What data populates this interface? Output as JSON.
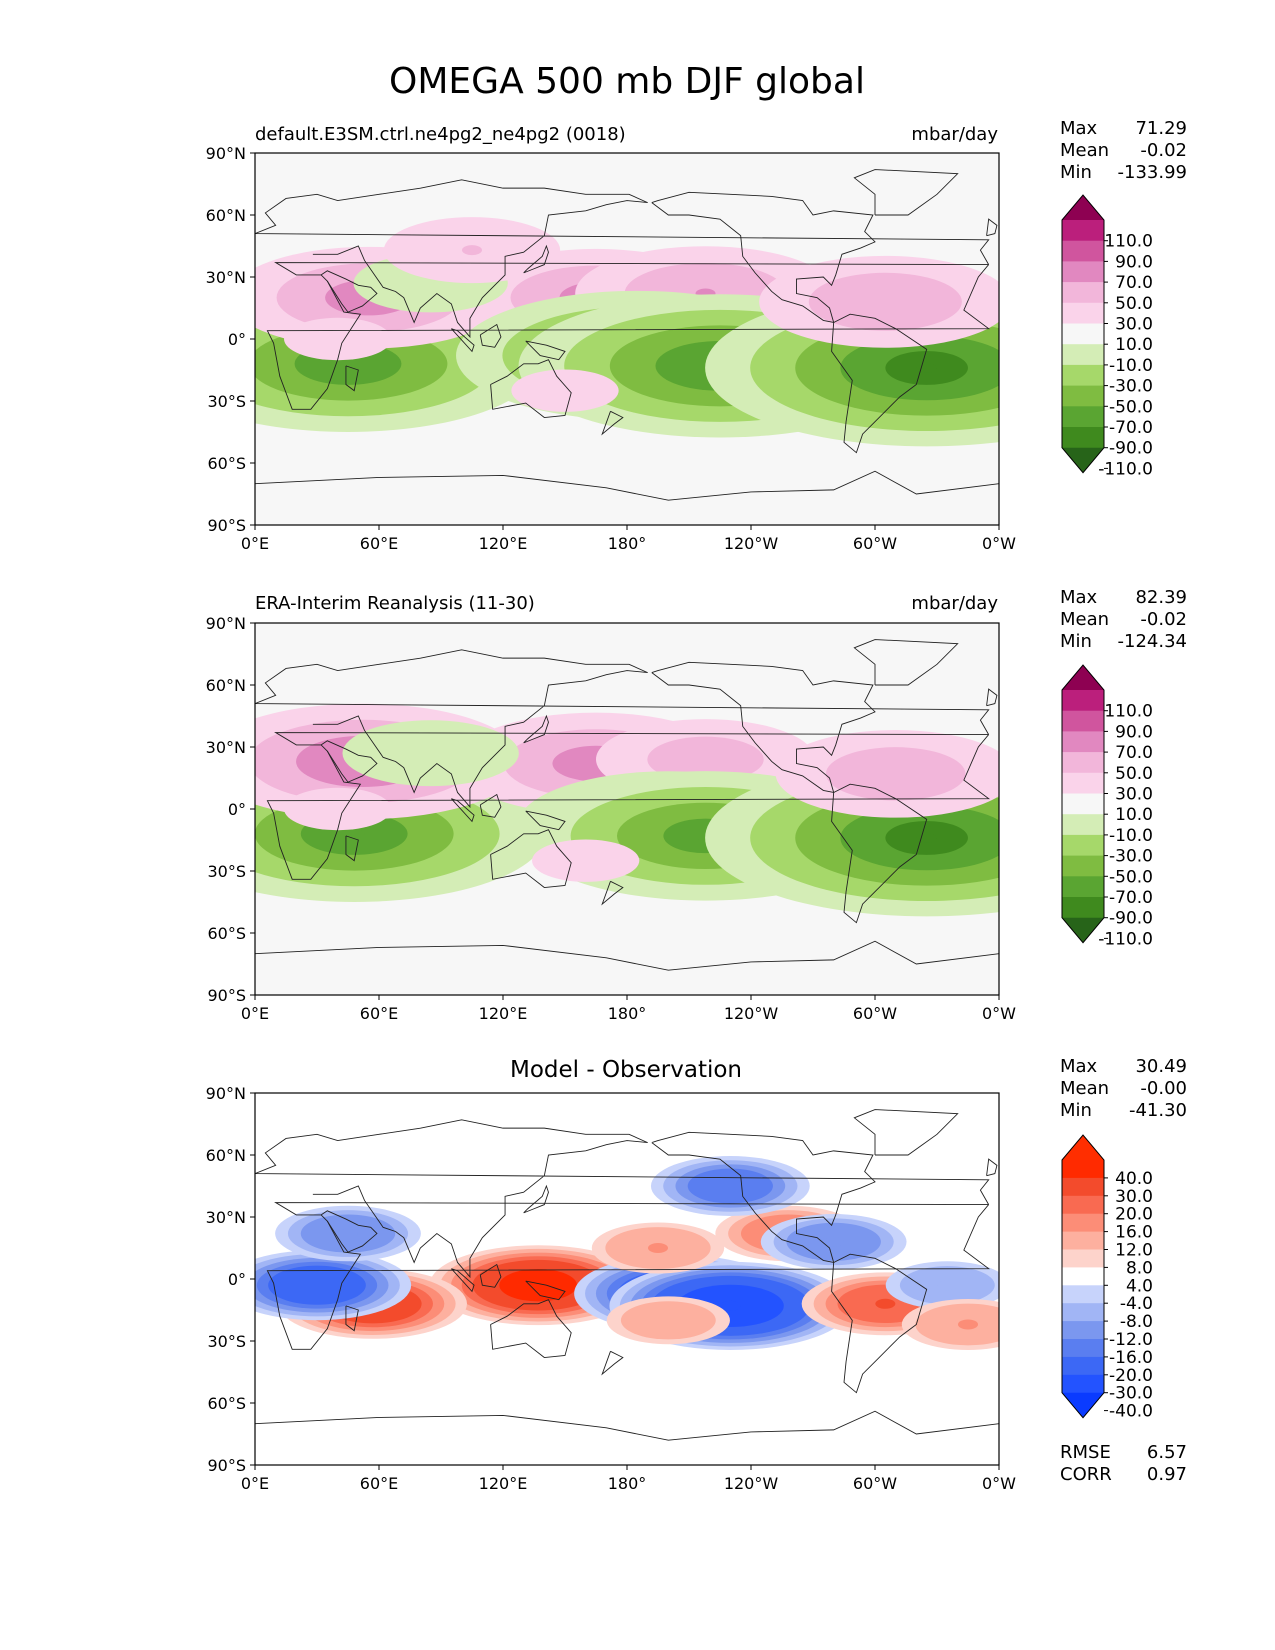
{
  "figure": {
    "title": "OMEGA 500 mb DJF global"
  },
  "colors": {
    "ocean_bg": "#f7f7f7",
    "diff_bg": "#ffffff",
    "coastline": "#222222",
    "pg_levels": [
      -110,
      -90,
      -70,
      -50,
      -30,
      -10,
      10,
      30,
      50,
      70,
      90,
      110
    ],
    "pg_colors": [
      "#276419",
      "#3f8a1e",
      "#5aa532",
      "#7fbc41",
      "#a6d86a",
      "#d4edb6",
      "#f7f7f7",
      "#fad3ea",
      "#f2b6da",
      "#e188c0",
      "#d0559e",
      "#bb1f7c",
      "#8e0152"
    ],
    "bwr_levels": [
      -40,
      -30,
      -20,
      -16,
      -12,
      -8,
      -4,
      4,
      8,
      12,
      16,
      20,
      30,
      40
    ],
    "bwr_colors": [
      "#0a3bff",
      "#2353ff",
      "#3c68f5",
      "#5a7ef0",
      "#7b97ef",
      "#a1b5f5",
      "#c7d3fb",
      "#ffffff",
      "#fdd3cb",
      "#fdb09f",
      "#fc8d77",
      "#f96a51",
      "#f34b2c",
      "#ff2a00",
      "#ff2e00"
    ]
  },
  "chart_data": [
    {
      "type": "heatmap",
      "panel": "model",
      "title": "default.E3SM.ctrl.ne4pg2_ne4pg2 (0018)",
      "units": "mbar/day",
      "stats": {
        "max_label": "Max",
        "max": "71.29",
        "mean_label": "Mean",
        "mean": "-0.02",
        "min_label": "Min",
        "min": "-133.99"
      },
      "colorbar_ticks": [
        "110.0",
        "90.0",
        "70.0",
        "50.0",
        "30.0",
        "10.0",
        "-10.0",
        "-30.0",
        "-50.0",
        "-70.0",
        "-90.0",
        "-110.0"
      ],
      "xticks": [
        "0°E",
        "60°E",
        "120°E",
        "180°",
        "120°W",
        "60°W",
        "0°W"
      ],
      "yticks": [
        "90°N",
        "60°N",
        "30°N",
        "0°",
        "30°S",
        "60°S",
        "90°S"
      ],
      "xlim": [
        0,
        360
      ],
      "ylim": [
        -90,
        90
      ],
      "features": [
        {
          "lon": 45,
          "lat": -12,
          "value": -80
        },
        {
          "lon": 55,
          "lat": 20,
          "value": 55
        },
        {
          "lon": 165,
          "lat": 20,
          "value": 52
        },
        {
          "lon": 218,
          "lat": 22,
          "value": 50
        },
        {
          "lon": 185,
          "lat": -8,
          "value": -75
        },
        {
          "lon": 225,
          "lat": -13,
          "value": -85
        },
        {
          "lon": 325,
          "lat": -14,
          "value": -95
        },
        {
          "lon": 305,
          "lat": 18,
          "value": 48
        },
        {
          "lon": 85,
          "lat": 27,
          "value": -25
        },
        {
          "lon": 105,
          "lat": 43,
          "value": 30
        },
        {
          "lon": 40,
          "lat": 0,
          "value": 15
        },
        {
          "lon": 150,
          "lat": -25,
          "value": 15
        }
      ]
    },
    {
      "type": "heatmap",
      "panel": "obs",
      "title": "ERA-Interim Reanalysis (11-30)",
      "units": "mbar/day",
      "stats": {
        "max_label": "Max",
        "max": "82.39",
        "mean_label": "Mean",
        "mean": "-0.02",
        "min_label": "Min",
        "min": "-124.34"
      },
      "colorbar_ticks": [
        "110.0",
        "90.0",
        "70.0",
        "50.0",
        "30.0",
        "10.0",
        "-10.0",
        "-30.0",
        "-50.0",
        "-70.0",
        "-90.0",
        "-110.0"
      ],
      "xticks": [
        "0°E",
        "60°E",
        "120°E",
        "180°",
        "120°W",
        "60°W",
        "0°W"
      ],
      "yticks": [
        "90°N",
        "60°N",
        "30°N",
        "0°",
        "30°S",
        "60°S",
        "90°S"
      ],
      "xlim": [
        0,
        360
      ],
      "ylim": [
        -90,
        90
      ],
      "features": [
        {
          "lon": 48,
          "lat": -12,
          "value": -80
        },
        {
          "lon": 52,
          "lat": 23,
          "value": 65
        },
        {
          "lon": 165,
          "lat": 22,
          "value": 55
        },
        {
          "lon": 218,
          "lat": 24,
          "value": 40
        },
        {
          "lon": 200,
          "lat": -8,
          "value": -60
        },
        {
          "lon": 218,
          "lat": -13,
          "value": -75
        },
        {
          "lon": 325,
          "lat": -14,
          "value": -95
        },
        {
          "lon": 310,
          "lat": 17,
          "value": 45
        },
        {
          "lon": 85,
          "lat": 27,
          "value": -30
        },
        {
          "lon": 40,
          "lat": 0,
          "value": 15
        },
        {
          "lon": 160,
          "lat": -25,
          "value": 15
        }
      ]
    },
    {
      "type": "heatmap",
      "panel": "diff",
      "title": "Model - Observation",
      "stats": {
        "max_label": "Max",
        "max": "30.49",
        "mean_label": "Mean",
        "mean": "-0.00",
        "min_label": "Min",
        "min": "-41.30"
      },
      "metrics": {
        "rmse_label": "RMSE",
        "rmse": "6.57",
        "corr_label": "CORR",
        "corr": "0.97"
      },
      "colorbar_ticks": [
        "40.0",
        "30.0",
        "20.0",
        "16.0",
        "12.0",
        "8.0",
        "4.0",
        "-4.0",
        "-8.0",
        "-12.0",
        "-16.0",
        "-20.0",
        "-30.0",
        "-40.0"
      ],
      "xticks": [
        "0°E",
        "60°E",
        "120°E",
        "180°",
        "120°W",
        "60°W",
        "0°W"
      ],
      "yticks": [
        "90°N",
        "60°N",
        "30°N",
        "0°",
        "30°S",
        "60°S",
        "90°S"
      ],
      "xlim": [
        0,
        360
      ],
      "ylim": [
        -90,
        90
      ],
      "features": [
        {
          "lon": 137,
          "lat": -3,
          "value": 32
        },
        {
          "lon": 57,
          "lat": -12,
          "value": 25
        },
        {
          "lon": 205,
          "lat": -7,
          "value": -30
        },
        {
          "lon": 230,
          "lat": -13,
          "value": -38
        },
        {
          "lon": 30,
          "lat": -3,
          "value": -25
        },
        {
          "lon": 45,
          "lat": 22,
          "value": -15
        },
        {
          "lon": 258,
          "lat": 22,
          "value": 15
        },
        {
          "lon": 195,
          "lat": 15,
          "value": 12
        },
        {
          "lon": 230,
          "lat": 45,
          "value": -18
        },
        {
          "lon": 280,
          "lat": 18,
          "value": -15
        },
        {
          "lon": 305,
          "lat": -12,
          "value": 20
        },
        {
          "lon": 335,
          "lat": -3,
          "value": -10
        },
        {
          "lon": 345,
          "lat": -22,
          "value": 12
        },
        {
          "lon": 200,
          "lat": -20,
          "value": 10
        }
      ]
    }
  ]
}
